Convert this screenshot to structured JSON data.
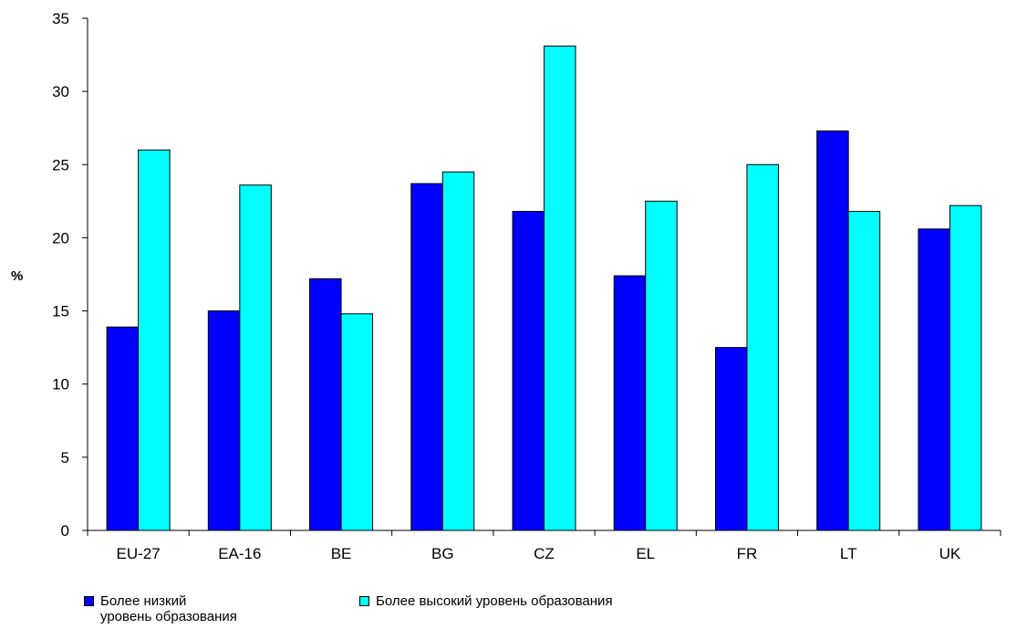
{
  "chart_data": {
    "type": "bar",
    "categories": [
      "EU-27",
      "EA-16",
      "BE",
      "BG",
      "CZ",
      "EL",
      "FR",
      "LT",
      "UK"
    ],
    "series": [
      {
        "name": "Более низкий уровень образования",
        "color": "#0000ff",
        "values": [
          13.9,
          15.0,
          17.2,
          23.7,
          21.8,
          17.4,
          12.5,
          27.3,
          20.6
        ]
      },
      {
        "name": "Более высокий уровень образования",
        "color": "#00ffff",
        "values": [
          26.0,
          23.6,
          14.8,
          24.5,
          33.1,
          22.5,
          25.0,
          21.8,
          22.2
        ]
      }
    ],
    "ylabel": "%",
    "ylim": [
      0,
      35
    ],
    "yticks": [
      0,
      5,
      10,
      15,
      20,
      25,
      30,
      35
    ],
    "legend_position": "bottom",
    "grid": false
  },
  "legend": {
    "low_line1": "Более низкий",
    "low_line2": "уровень образования",
    "high": "Более высокий уровень образования"
  }
}
